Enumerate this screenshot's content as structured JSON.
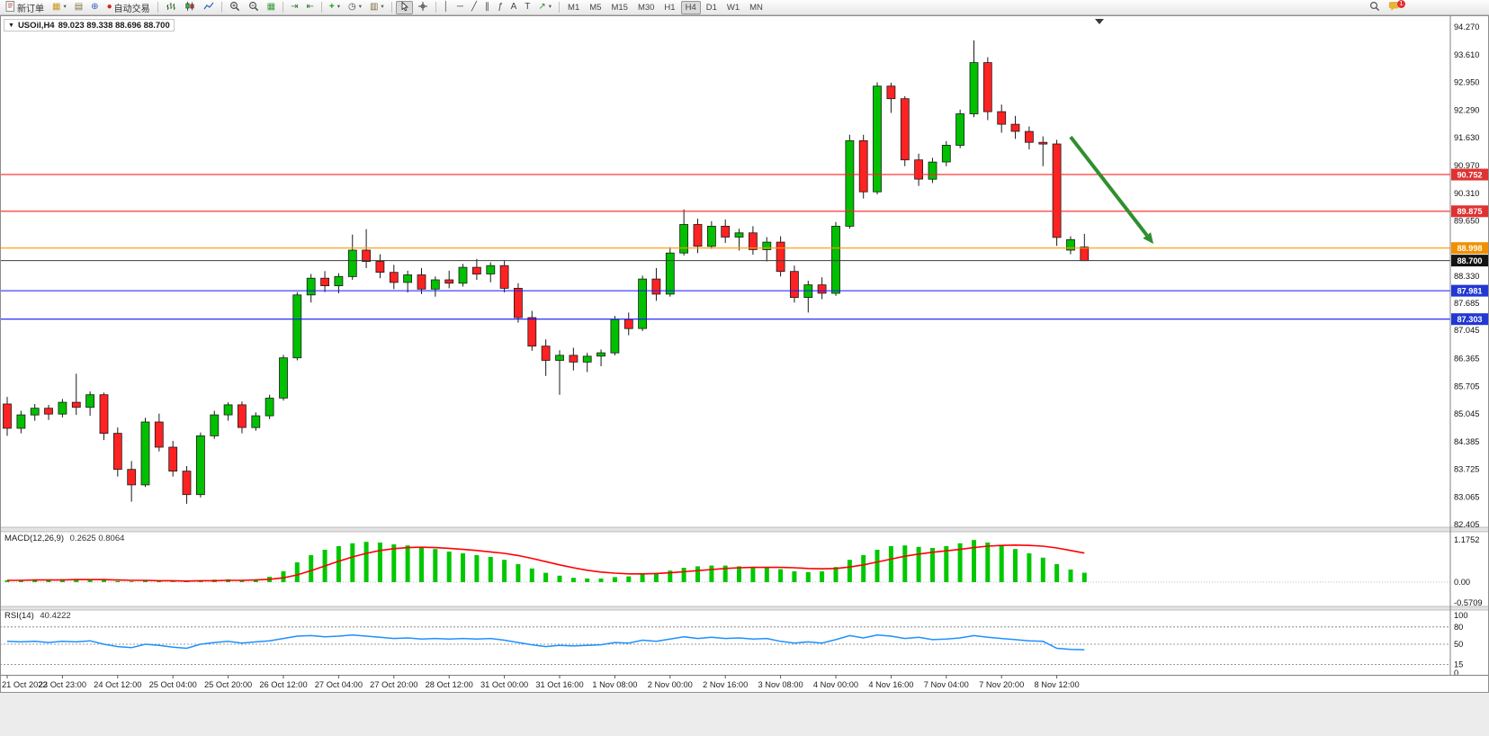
{
  "toolbar": {
    "new_order": "新订单",
    "autotrading": "自动交易",
    "chat_badge": "1",
    "timeframes": [
      "M1",
      "M5",
      "M15",
      "M30",
      "H1",
      "H4",
      "D1",
      "W1",
      "MN"
    ],
    "active_timeframe": "H4",
    "glyphs": {
      "dropdown": "▾",
      "new_chart": "▦",
      "profiles": "▤",
      "market_watch": "⊕",
      "autotrading_dot": "●",
      "tile_windows": "▦",
      "auto_scroll": "⇥",
      "chart_shift": "⇤",
      "indicators_plus": "+",
      "periods_clock": "◷",
      "templates": "▥",
      "vertical_line": "│",
      "horizontal_line": "─",
      "trendline": "╱",
      "channel": "∥",
      "fibonacci": "ƒ",
      "text_tool": "A",
      "label_tool": "T",
      "arrows_tool": "↗"
    }
  },
  "chart": {
    "collapse_glyph": "▼",
    "symbol_title": "USOil,H4",
    "ohlc_text": "89.023 89.338 88.696 88.700"
  },
  "chart_data": {
    "type": "candlestick",
    "symbol": "USOil",
    "timeframe": "H4",
    "up_color": "#00c000",
    "down_color": "#ff2222",
    "last_ohlc": {
      "open": 89.023,
      "high": 89.338,
      "low": 88.696,
      "close": 88.7
    },
    "price_axis": {
      "max": 94.27,
      "min": 82.405,
      "labels": [
        "94.270",
        "93.610",
        "92.950",
        "92.290",
        "91.630",
        "90.970",
        "90.310",
        "89.650",
        "88.330",
        "87.685",
        "87.045",
        "86.365",
        "85.705",
        "85.045",
        "84.385",
        "83.725",
        "83.065",
        "82.405"
      ]
    },
    "levels": [
      {
        "name": "resistance-line-90752",
        "price": 90.752,
        "label": "90.752",
        "line_color": "#ff2222",
        "badge_color": "#e03232"
      },
      {
        "name": "resistance-line-89875",
        "price": 89.875,
        "label": "89.875",
        "line_color": "#ff2222",
        "badge_color": "#e03232"
      },
      {
        "name": "pivot-line-88998",
        "price": 88.998,
        "label": "88.998",
        "line_color": "#ff9900",
        "badge_color": "#f09000"
      },
      {
        "name": "support-line-87981",
        "price": 87.981,
        "label": "87.981",
        "line_color": "#1414ff",
        "badge_color": "#2238d4"
      },
      {
        "name": "support-line-87303",
        "price": 87.303,
        "label": "87.303",
        "line_color": "#1414ff",
        "badge_color": "#2238d4"
      }
    ],
    "current_price": {
      "value": 88.7,
      "label": "88.700",
      "line_color": "#3c3c3c",
      "badge_color": "#141414"
    },
    "trend_arrow": {
      "from_index": 77,
      "from_price": 91.65,
      "to_index": 83,
      "to_price": 89.1,
      "color": "#2f8f2f"
    },
    "time_labels": [
      "21 Oct 2022",
      "23 Oct 23:00",
      "24 Oct 12:00",
      "25 Oct 04:00",
      "25 Oct 20:00",
      "26 Oct 12:00",
      "27 Oct 04:00",
      "27 Oct 20:00",
      "28 Oct 12:00",
      "31 Oct 00:00",
      "31 Oct 16:00",
      "1 Nov 08:00",
      "2 Nov 00:00",
      "2 Nov 16:00",
      "3 Nov 08:00",
      "4 Nov 00:00",
      "4 Nov 16:00",
      "7 Nov 04:00",
      "7 Nov 20:00",
      "8 Nov 12:00"
    ],
    "candles": [
      [
        85.28,
        85.45,
        84.52,
        84.7
      ],
      [
        84.7,
        85.12,
        84.58,
        85.02
      ],
      [
        85.02,
        85.28,
        84.88,
        85.18
      ],
      [
        85.18,
        85.26,
        84.9,
        85.04
      ],
      [
        85.04,
        85.4,
        84.96,
        85.32
      ],
      [
        85.32,
        86.0,
        85.02,
        85.2
      ],
      [
        85.2,
        85.58,
        85.0,
        85.5
      ],
      [
        85.5,
        85.55,
        84.42,
        84.58
      ],
      [
        84.58,
        84.72,
        83.55,
        83.72
      ],
      [
        83.72,
        83.92,
        82.95,
        83.35
      ],
      [
        83.35,
        84.95,
        83.3,
        84.85
      ],
      [
        84.85,
        85.05,
        84.15,
        84.25
      ],
      [
        84.25,
        84.4,
        83.55,
        83.68
      ],
      [
        83.68,
        83.8,
        82.9,
        83.12
      ],
      [
        83.12,
        84.6,
        83.05,
        84.52
      ],
      [
        84.52,
        85.12,
        84.45,
        85.02
      ],
      [
        85.02,
        85.32,
        84.88,
        85.26
      ],
      [
        85.26,
        85.34,
        84.58,
        84.72
      ],
      [
        84.72,
        85.08,
        84.64,
        85.0
      ],
      [
        85.0,
        85.5,
        84.92,
        85.42
      ],
      [
        85.42,
        86.45,
        85.36,
        86.38
      ],
      [
        86.38,
        87.95,
        86.32,
        87.88
      ],
      [
        87.88,
        88.38,
        87.7,
        88.28
      ],
      [
        88.28,
        88.45,
        87.95,
        88.1
      ],
      [
        88.1,
        88.4,
        87.92,
        88.32
      ],
      [
        88.32,
        89.32,
        88.24,
        88.95
      ],
      [
        88.95,
        89.45,
        88.52,
        88.68
      ],
      [
        88.68,
        88.85,
        88.28,
        88.42
      ],
      [
        88.42,
        88.6,
        88.02,
        88.18
      ],
      [
        88.18,
        88.46,
        87.94,
        88.36
      ],
      [
        88.36,
        88.52,
        87.9,
        88.02
      ],
      [
        88.02,
        88.32,
        87.84,
        88.24
      ],
      [
        88.24,
        88.46,
        88.04,
        88.16
      ],
      [
        88.16,
        88.62,
        88.08,
        88.54
      ],
      [
        88.54,
        88.74,
        88.24,
        88.38
      ],
      [
        88.38,
        88.66,
        88.18,
        88.58
      ],
      [
        88.58,
        88.7,
        87.94,
        88.04
      ],
      [
        88.04,
        88.16,
        87.22,
        87.34
      ],
      [
        87.34,
        87.5,
        86.55,
        86.66
      ],
      [
        86.66,
        86.82,
        85.95,
        86.32
      ],
      [
        86.32,
        86.56,
        85.5,
        86.44
      ],
      [
        86.44,
        86.62,
        86.08,
        86.28
      ],
      [
        86.28,
        86.5,
        86.04,
        86.42
      ],
      [
        86.42,
        86.58,
        86.18,
        86.5
      ],
      [
        86.5,
        87.38,
        86.44,
        87.3
      ],
      [
        87.3,
        87.46,
        86.92,
        87.08
      ],
      [
        87.08,
        88.34,
        87.02,
        88.26
      ],
      [
        88.26,
        88.52,
        87.74,
        87.9
      ],
      [
        87.9,
        89.02,
        87.84,
        88.88
      ],
      [
        88.88,
        89.92,
        88.82,
        89.56
      ],
      [
        89.56,
        89.7,
        88.88,
        89.04
      ],
      [
        89.04,
        89.64,
        88.98,
        89.52
      ],
      [
        89.52,
        89.68,
        89.12,
        89.26
      ],
      [
        89.26,
        89.46,
        88.94,
        89.36
      ],
      [
        89.36,
        89.52,
        88.84,
        88.96
      ],
      [
        88.96,
        89.26,
        88.68,
        89.14
      ],
      [
        89.14,
        89.28,
        88.32,
        88.44
      ],
      [
        88.44,
        88.58,
        87.7,
        87.82
      ],
      [
        87.82,
        88.22,
        87.46,
        88.12
      ],
      [
        88.12,
        88.3,
        87.78,
        87.92
      ],
      [
        87.92,
        89.62,
        87.86,
        89.52
      ],
      [
        89.52,
        91.7,
        89.46,
        91.56
      ],
      [
        91.56,
        91.7,
        90.18,
        90.34
      ],
      [
        90.34,
        92.95,
        90.28,
        92.86
      ],
      [
        92.86,
        92.94,
        92.22,
        92.56
      ],
      [
        92.56,
        92.62,
        90.95,
        91.1
      ],
      [
        91.1,
        91.25,
        90.48,
        90.64
      ],
      [
        90.64,
        91.15,
        90.55,
        91.05
      ],
      [
        91.05,
        91.55,
        90.95,
        91.45
      ],
      [
        91.45,
        92.3,
        91.38,
        92.2
      ],
      [
        92.2,
        93.95,
        92.12,
        93.42
      ],
      [
        93.42,
        93.55,
        92.05,
        92.25
      ],
      [
        92.25,
        92.42,
        91.75,
        91.95
      ],
      [
        91.95,
        92.15,
        91.6,
        91.78
      ],
      [
        91.78,
        91.9,
        91.35,
        91.52
      ],
      [
        91.52,
        91.66,
        90.95,
        91.48
      ],
      [
        91.48,
        91.58,
        89.05,
        89.25
      ],
      [
        88.95,
        89.28,
        88.85,
        89.2
      ],
      [
        89.023,
        89.338,
        88.696,
        88.7
      ]
    ],
    "macd": {
      "label": "MACD(12,26,9)",
      "values_text": "0.2625 0.8064",
      "main_value": 0.2625,
      "signal_value": 0.8064,
      "histogram_color": "#00c800",
      "signal_color": "#ff0000",
      "axis_labels": [
        {
          "text": "1.1752",
          "value": 1.1752
        },
        {
          "text": "0.00",
          "value": 0
        },
        {
          "text": "-0.5709",
          "value": -0.5709
        }
      ],
      "histogram": [
        0.05,
        0.06,
        0.07,
        0.06,
        0.08,
        0.09,
        0.08,
        0.05,
        0.03,
        0.02,
        0.04,
        0.03,
        0.02,
        0.02,
        0.05,
        0.07,
        0.08,
        0.06,
        0.08,
        0.15,
        0.3,
        0.55,
        0.75,
        0.9,
        1.0,
        1.08,
        1.12,
        1.1,
        1.05,
        1.02,
        0.98,
        0.92,
        0.85,
        0.8,
        0.75,
        0.7,
        0.62,
        0.5,
        0.38,
        0.26,
        0.18,
        0.12,
        0.1,
        0.1,
        0.14,
        0.16,
        0.22,
        0.26,
        0.32,
        0.4,
        0.44,
        0.46,
        0.46,
        0.44,
        0.42,
        0.4,
        0.36,
        0.3,
        0.28,
        0.3,
        0.42,
        0.62,
        0.75,
        0.9,
        1.0,
        1.02,
        0.98,
        0.95,
        1.0,
        1.08,
        1.17,
        1.1,
        1.02,
        0.92,
        0.8,
        0.68,
        0.5,
        0.35,
        0.2625
      ],
      "signal": [
        0.05,
        0.05,
        0.06,
        0.06,
        0.06,
        0.07,
        0.07,
        0.07,
        0.06,
        0.05,
        0.05,
        0.04,
        0.04,
        0.03,
        0.04,
        0.04,
        0.05,
        0.05,
        0.06,
        0.08,
        0.12,
        0.2,
        0.32,
        0.45,
        0.58,
        0.7,
        0.8,
        0.88,
        0.93,
        0.96,
        0.97,
        0.96,
        0.94,
        0.91,
        0.88,
        0.84,
        0.8,
        0.74,
        0.66,
        0.57,
        0.48,
        0.4,
        0.33,
        0.28,
        0.25,
        0.23,
        0.23,
        0.24,
        0.26,
        0.29,
        0.32,
        0.35,
        0.38,
        0.4,
        0.41,
        0.41,
        0.41,
        0.4,
        0.38,
        0.37,
        0.38,
        0.42,
        0.48,
        0.56,
        0.64,
        0.72,
        0.78,
        0.83,
        0.87,
        0.91,
        0.96,
        1.0,
        1.02,
        1.03,
        1.02,
        1.0,
        0.95,
        0.88,
        0.8064
      ]
    },
    "rsi": {
      "label": "RSI(14)",
      "value_text": "40.4222",
      "value": 40.4222,
      "line_color": "#1e90ff",
      "axis_labels": [
        {
          "text": "100",
          "value": 100
        },
        {
          "text": "80",
          "value": 80
        },
        {
          "text": "50",
          "value": 50
        },
        {
          "text": "15",
          "value": 15
        },
        {
          "text": "0",
          "value": 0
        }
      ],
      "levels": [
        80,
        50,
        15
      ],
      "values": [
        55,
        54,
        55,
        53,
        55,
        54,
        56,
        50,
        46,
        44,
        50,
        48,
        45,
        43,
        50,
        53,
        55,
        52,
        54,
        56,
        60,
        64,
        65,
        63,
        64,
        66,
        64,
        62,
        60,
        61,
        59,
        60,
        59,
        60,
        59,
        60,
        57,
        53,
        49,
        46,
        48,
        47,
        48,
        49,
        53,
        52,
        57,
        55,
        59,
        63,
        60,
        62,
        60,
        61,
        59,
        60,
        55,
        52,
        54,
        52,
        58,
        65,
        61,
        66,
        64,
        60,
        62,
        58,
        59,
        61,
        65,
        62,
        60,
        58,
        56,
        55,
        43,
        41,
        40.42
      ]
    }
  }
}
